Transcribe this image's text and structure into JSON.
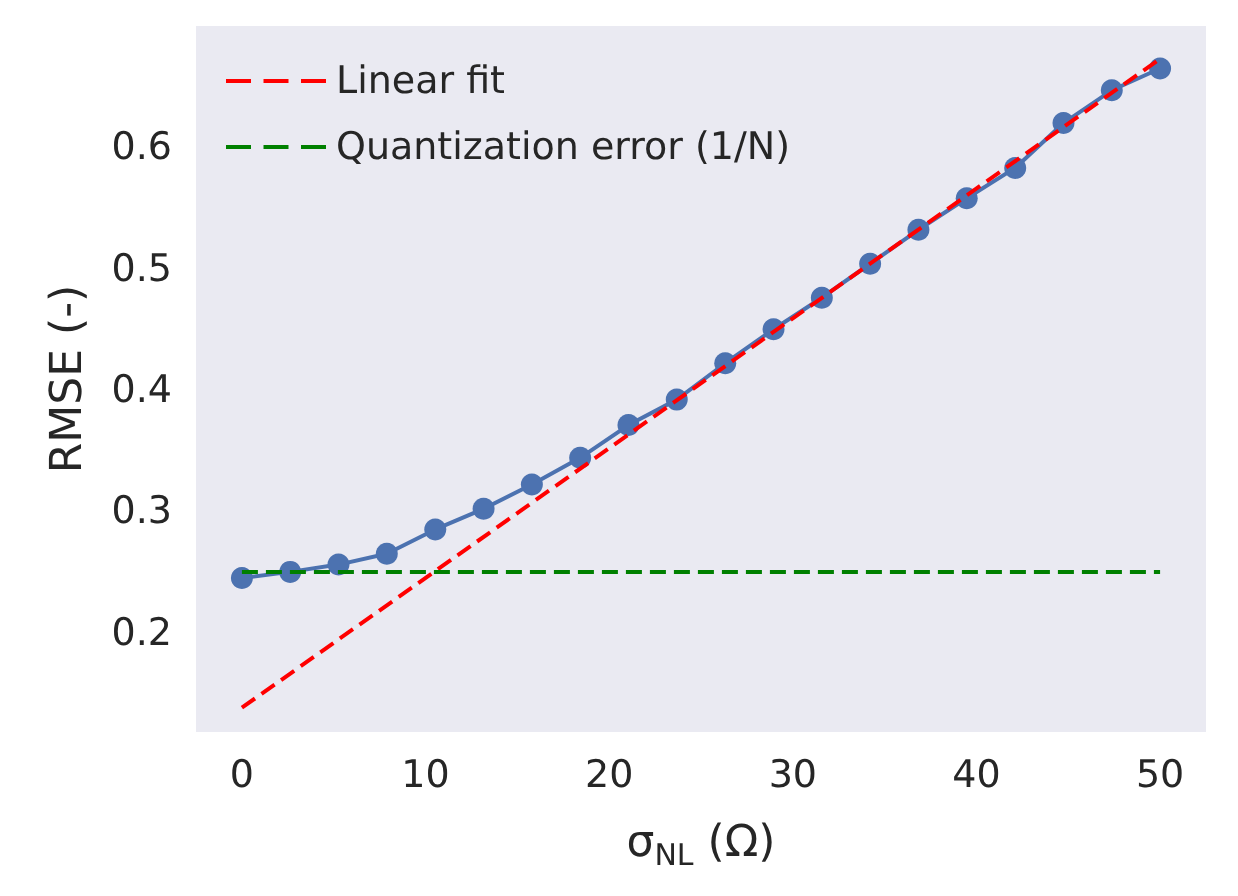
{
  "chart_data": {
    "type": "line",
    "xlabel": "σ$_{NL}$ (Ω)",
    "ylabel": "RMSE (-)",
    "xlim": [
      -2.5,
      52.5
    ],
    "xticks": [
      0,
      10,
      20,
      30,
      40,
      50
    ],
    "ylim": [
      0.118,
      0.7
    ],
    "yticks": [
      0.2,
      0.3,
      0.4,
      0.5,
      0.6
    ],
    "grid": false,
    "legend": "top left",
    "series": [
      {
        "color": "#4c72b0",
        "marker": "circle",
        "line_style": "solid",
        "x": [
          0,
          2.63,
          5.26,
          7.89,
          10.53,
          13.16,
          15.79,
          18.42,
          21.05,
          23.68,
          26.32,
          28.95,
          31.58,
          34.21,
          36.84,
          39.47,
          42.11,
          44.74,
          47.37,
          50
        ],
        "values": [
          0.245,
          0.25,
          0.256,
          0.265,
          0.285,
          0.302,
          0.322,
          0.344,
          0.371,
          0.392,
          0.422,
          0.45,
          0.476,
          0.504,
          0.532,
          0.558,
          0.583,
          0.62,
          0.647,
          0.665
        ]
      },
      {
        "name": "Linear fit",
        "color": "#ff0000",
        "marker": "none",
        "line_style": "dashed",
        "x": [
          0,
          50
        ],
        "values": [
          0.138,
          0.673
        ]
      },
      {
        "name": "Quantization error (1/N)",
        "color": "#008000",
        "marker": "none",
        "line_style": "dashed",
        "x": [
          0,
          50
        ],
        "values": [
          0.25,
          0.25
        ]
      }
    ]
  }
}
